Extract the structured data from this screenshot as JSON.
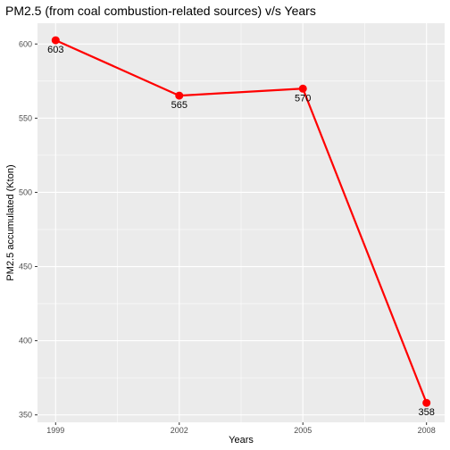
{
  "chart_data": {
    "type": "line",
    "title": "PM2.5 (from coal combustion-related sources) v/s Years",
    "xlabel": "Years",
    "ylabel": "PM2.5 accumulated (Kton)",
    "x": [
      1999,
      2002,
      2005,
      2008
    ],
    "x_tick_labels": [
      "1999",
      "2002",
      "2005",
      "2008"
    ],
    "y": [
      602.5,
      565.2,
      569.9,
      358.1
    ],
    "data_labels": [
      "603",
      "565",
      "570",
      "358"
    ],
    "y_ticks": [
      350,
      400,
      450,
      500,
      550,
      600
    ],
    "y_tick_labels": [
      "350",
      "400",
      "450",
      "500",
      "550",
      "600"
    ],
    "ylim": [
      345,
      614
    ],
    "grid": true,
    "legend": "none",
    "colors": {
      "line": "#ff0000",
      "panel": "#ebebeb",
      "grid": "#ffffff",
      "tick_text": "#4d4d4d"
    }
  }
}
